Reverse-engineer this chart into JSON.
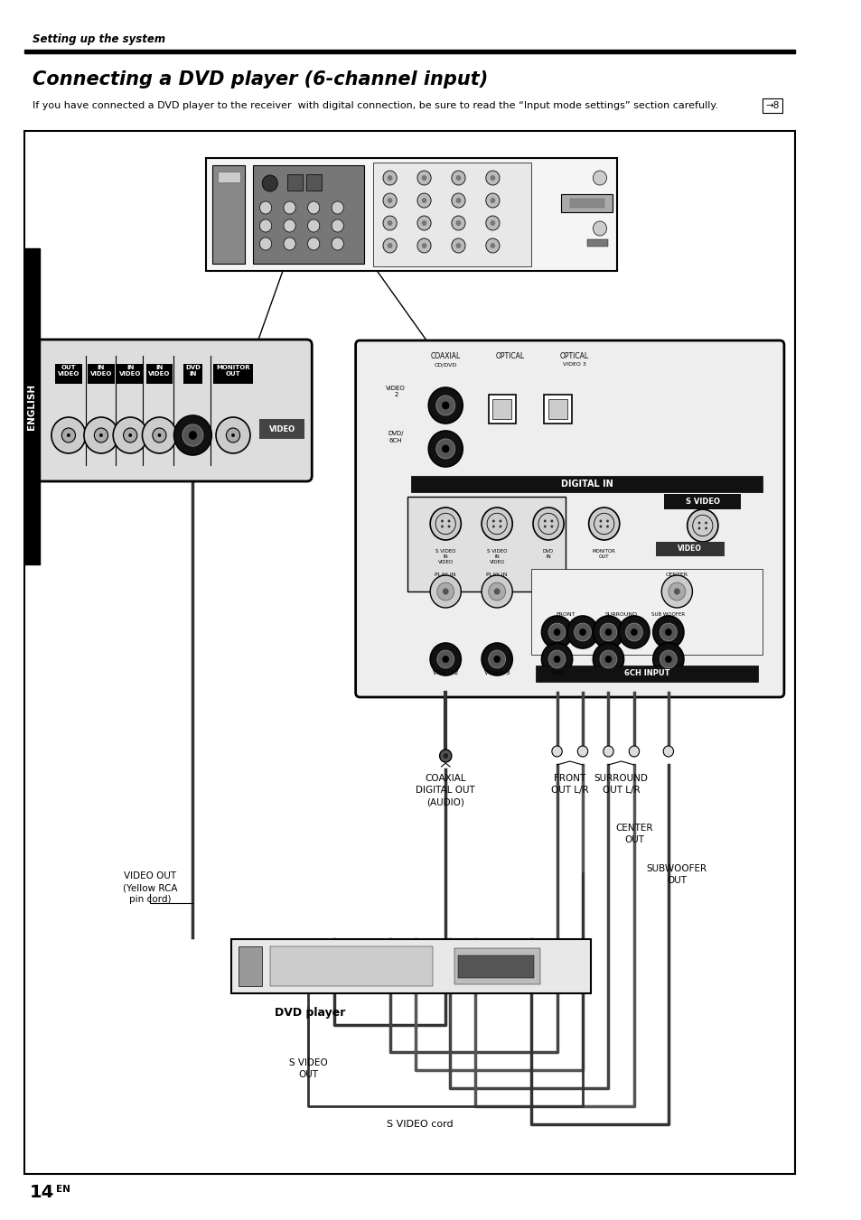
{
  "header_text": "Setting up the system",
  "title": "Connecting a DVD player (6-channel input)",
  "subtitle": "If you have connected a DVD player to the receiver  with digital connection, be sure to read the “Input mode settings” section carefully.",
  "page_ref": "→8",
  "page_number": "14",
  "page_suffix": "EN",
  "english_sidebar": "ENGLISH",
  "bg_color": "#ffffff",
  "label_video_out": "VIDEO OUT\n(Yellow RCA\npin cord)",
  "label_coaxial": "COAXIAL\nDIGITAL OUT\n(AUDIO)",
  "label_dvd_player": "DVD player",
  "label_front": "FRONT\nOUT L/R",
  "label_surround": "SURROUND\nOUT L/R",
  "label_center": "CENTER\nOUT",
  "label_subwoofer": "SUBWOOFER\nOUT",
  "label_svideo_out": "S VIDEO\nOUT",
  "label_svideo_cord": "S VIDEO cord"
}
